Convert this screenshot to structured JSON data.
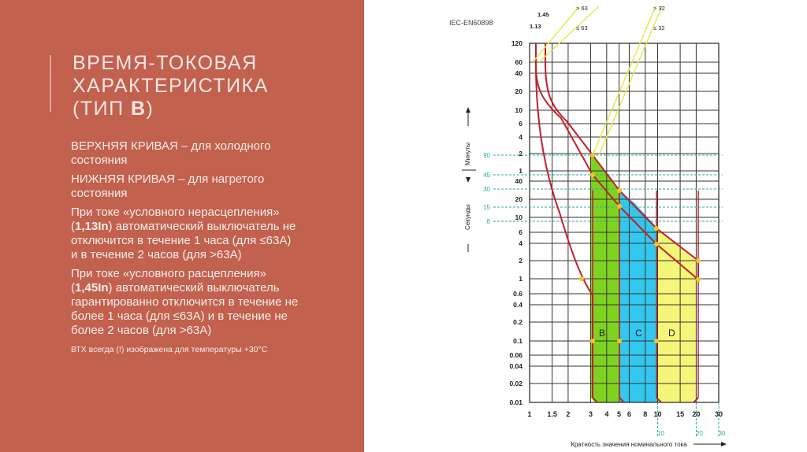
{
  "slide": {
    "title_line1": "ВРЕМЯ-ТОКОВАЯ",
    "title_line2": "ХАРАКТЕРИСТИКА",
    "title_line3a": "(ТИП ",
    "title_line3b": "B",
    "title_line3c": ")",
    "p1": "ВЕРХНЯЯ КРИВАЯ – для холодного состояния",
    "p2": "НИЖНЯЯ КРИВАЯ – для нагретого состояния",
    "p3a": "При токе «условного нерасцепления» (",
    "p3b": "1,13In",
    "p3c": ") автоматический выключатель не отключится в течение 1 часа (для ≤63А) и в течение 2 часов (для >63А)",
    "p4a": "При токе «условного расцепления» (",
    "p4b": "1,45In",
    "p4c": ") автоматический выключатель гарантированно отключится в течение не более 1 часа (для ≤63А) и в течение не более 2 часов (для >63А)",
    "note": "ВТХ всегда (!) изображена для температуры +30°С"
  },
  "chart_data": {
    "type": "area",
    "standard_label": "IEC-EN60898",
    "x_scale": "log",
    "y_scale": "log",
    "xlim": [
      1,
      30
    ],
    "x_ticks": [
      "1",
      "1.5",
      "2",
      "3",
      "4",
      "5",
      "6",
      "8",
      "10",
      "15",
      "20",
      "30"
    ],
    "y_ticks_minutes": [
      "120",
      "60",
      "40",
      "20",
      "10",
      "6",
      "4",
      "2",
      "1"
    ],
    "y_ticks_seconds": [
      "40",
      "20",
      "10",
      "6",
      "4",
      "2",
      "1",
      "0.6",
      "0.4",
      "0.2",
      "0.1",
      "0.06",
      "0.04",
      "0.02",
      "0.01"
    ],
    "left_marks": [
      "90",
      "45",
      "30",
      "15",
      "8"
    ],
    "ylabel_minutes": "Минуты",
    "ylabel_seconds": "Секунды",
    "xlabel": "Кратность значения номинального тока",
    "bottom_extra_ticks": [
      "10",
      "20",
      "30"
    ],
    "top_labels": {
      "i113": "1.13",
      "i145": "1.45",
      "gt63a": "> 63",
      "le63a": "≤ 63",
      "gt32": "> 32",
      "le32": "≤ 32"
    },
    "series": [
      {
        "name": "B",
        "from": 3,
        "to": 5,
        "color": "#7ED321"
      },
      {
        "name": "C",
        "from": 5,
        "to": 10,
        "color": "#35C8EE"
      },
      {
        "name": "D",
        "from": 10,
        "to": 20,
        "color": "#F5F57A"
      }
    ],
    "colors": {
      "curve": "#C0202A",
      "grid": "#333333",
      "guide": "#E8E84A",
      "dashed": "#2AA9A9",
      "point": "#F3C71C"
    }
  }
}
